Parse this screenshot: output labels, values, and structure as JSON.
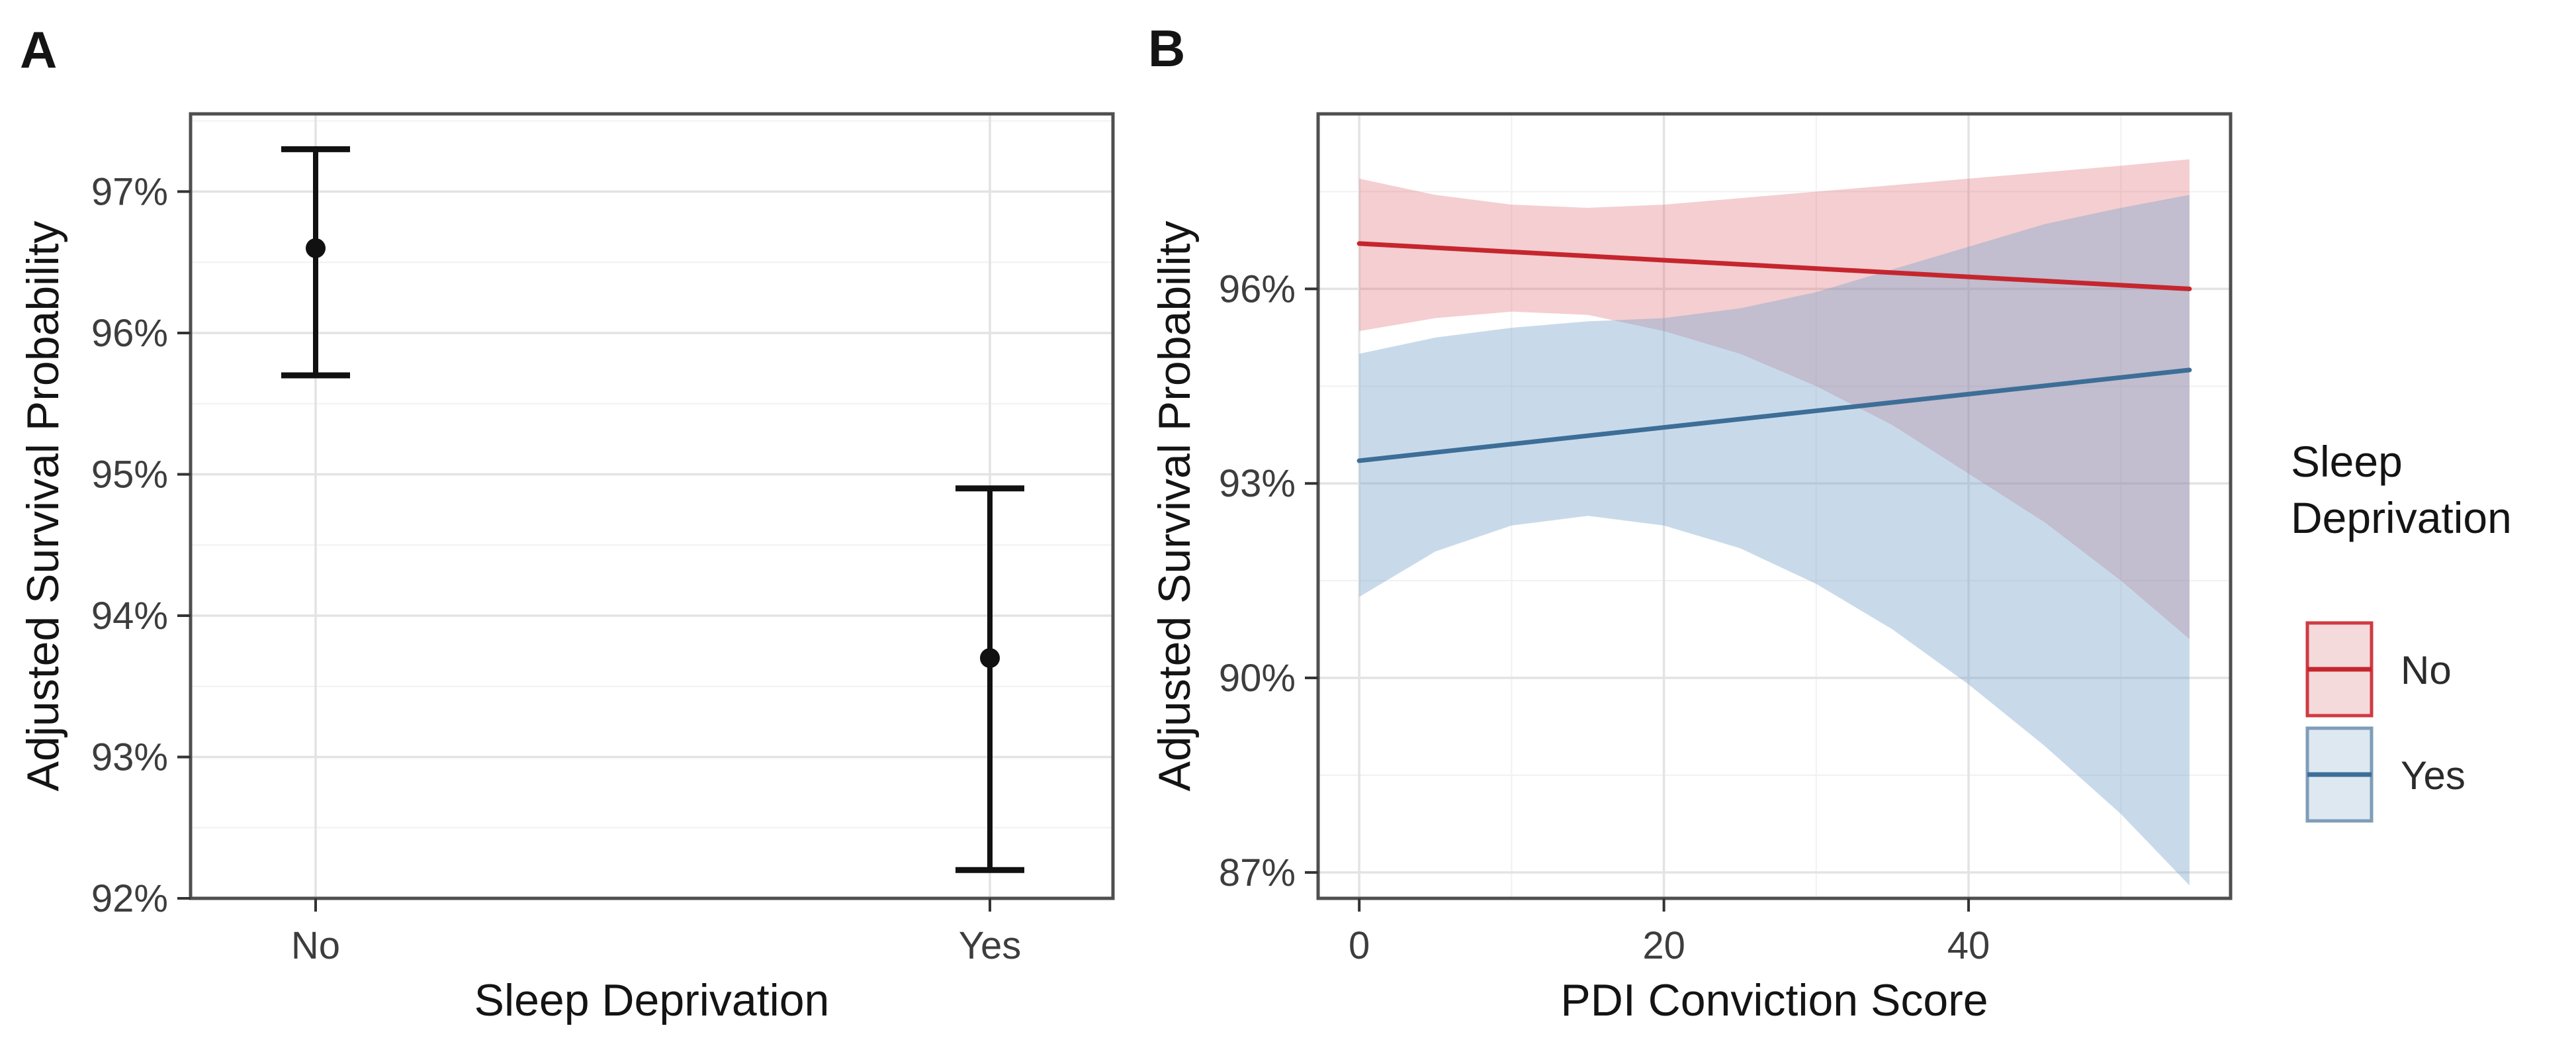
{
  "figure": {
    "panel_labels": [
      "A",
      "B"
    ],
    "background": "#ffffff"
  },
  "colors": {
    "panel_border": "#4f4f4f",
    "grid_major": "#e3e3e3",
    "grid_minor": "#f1f1f1",
    "tick_mark": "#333333",
    "point_black": "#111111",
    "no_red_line": "#c5262e",
    "no_red_band": "rgba(222,102,108,0.32)",
    "yes_blue_line": "#3d6e97",
    "yes_blue_band": "rgba(125,166,204,0.42)"
  },
  "chart_data": [
    {
      "panel": "A",
      "type": "scatter",
      "subtype": "point-estimate-with-error-bars",
      "title": "",
      "xlabel": "Sleep Deprivation",
      "ylabel": "Adjusted Survival Probability",
      "unit": "percent",
      "categories": [
        "No",
        "Yes"
      ],
      "points": [
        {
          "category": "No",
          "estimate": 96.6,
          "ci_low": 95.7,
          "ci_high": 97.3
        },
        {
          "category": "Yes",
          "estimate": 93.7,
          "ci_low": 92.2,
          "ci_high": 94.9
        }
      ],
      "ylim": [
        92,
        97.55
      ],
      "yticks": [
        {
          "value": 92,
          "label": "92%"
        },
        {
          "value": 93,
          "label": "93%"
        },
        {
          "value": 94,
          "label": "94%"
        },
        {
          "value": 95,
          "label": "95%"
        },
        {
          "value": 96,
          "label": "96%"
        },
        {
          "value": 97,
          "label": "97%"
        }
      ],
      "yticks_minor": [
        92.5,
        93.5,
        94.5,
        95.5,
        96.5,
        97.5
      ],
      "grid": true,
      "legend": "none"
    },
    {
      "panel": "B",
      "type": "line",
      "subtype": "regression-lines-with-confidence-ribbons",
      "title": "",
      "xlabel": "PDI Conviction Score",
      "ylabel": "Adjusted Survival Probability",
      "unit": "percent",
      "legend_title": "Sleep Deprivation",
      "legend_title_lines": [
        "Sleep",
        "Deprivation"
      ],
      "legend_position": "right",
      "xlim": [
        -2.7,
        57.2
      ],
      "ylim": [
        86.6,
        98.7
      ],
      "xticks": [
        {
          "value": 0,
          "label": "0"
        },
        {
          "value": 20,
          "label": "20"
        },
        {
          "value": 40,
          "label": "40"
        }
      ],
      "xticks_minor": [
        10,
        30,
        50
      ],
      "yticks": [
        {
          "value": 87,
          "label": "87%"
        },
        {
          "value": 90,
          "label": "90%"
        },
        {
          "value": 93,
          "label": "93%"
        },
        {
          "value": 96,
          "label": "96%"
        }
      ],
      "yticks_minor": [
        88.5,
        91.5,
        94.5,
        97.5
      ],
      "grid": true,
      "series": [
        {
          "name": "No",
          "line_color": "#c5262e",
          "band_color": "rgba(222,102,108,0.32)",
          "key_fill": "#f4dadb",
          "key_border": "#cf3b43",
          "line": {
            "x": [
              0,
              54.5
            ],
            "y": [
              96.7,
              96.0
            ]
          },
          "band": {
            "x": [
              0,
              5,
              10,
              15,
              20,
              25,
              30,
              35,
              40,
              45,
              50,
              54.5
            ],
            "upper": [
              97.7,
              97.45,
              97.3,
              97.25,
              97.3,
              97.4,
              97.5,
              97.6,
              97.7,
              97.8,
              97.9,
              98.0
            ],
            "lower": [
              95.35,
              95.55,
              95.65,
              95.6,
              95.35,
              95.0,
              94.5,
              93.9,
              93.15,
              92.4,
              91.5,
              90.6
            ]
          }
        },
        {
          "name": "Yes",
          "line_color": "#3d6e97",
          "band_color": "rgba(125,166,204,0.42)",
          "key_fill": "#dde8f1",
          "key_border": "#7f9db8",
          "line": {
            "x": [
              0,
              54.5
            ],
            "y": [
              93.35,
              94.75
            ]
          },
          "band": {
            "x": [
              0,
              5,
              10,
              15,
              20,
              25,
              30,
              35,
              40,
              45,
              50,
              54.5
            ],
            "upper": [
              95.0,
              95.25,
              95.4,
              95.5,
              95.55,
              95.7,
              95.95,
              96.3,
              96.65,
              97.0,
              97.25,
              97.45
            ],
            "lower": [
              91.25,
              91.95,
              92.35,
              92.5,
              92.35,
              92.0,
              91.45,
              90.75,
              89.9,
              88.95,
              87.9,
              86.8
            ]
          }
        }
      ]
    }
  ]
}
